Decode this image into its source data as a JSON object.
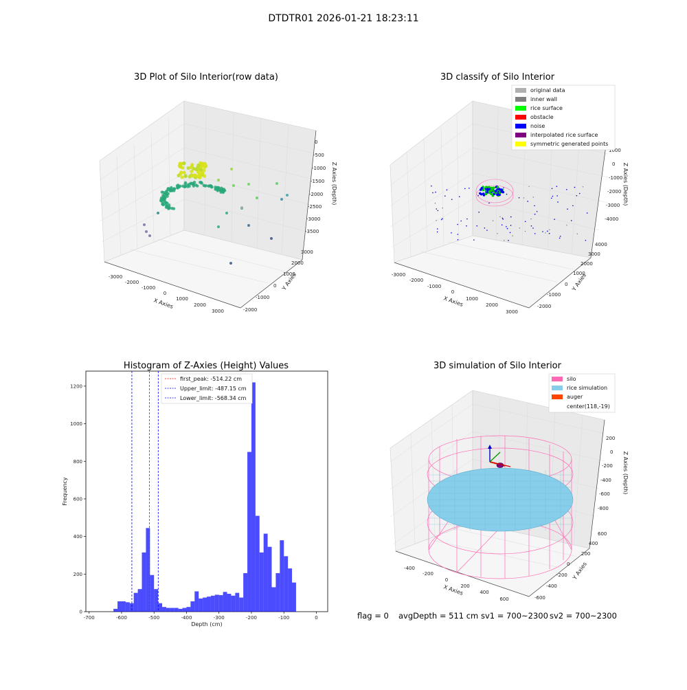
{
  "figure": {
    "suptitle": "DTDTR01 2026-01-21 18:23:11",
    "footer": {
      "flag": "flag = 0",
      "avg_depth": "avgDepth = 511 cm",
      "sv1": "sv1 = 700~2300",
      "sv2": "sv2 = 700~2300"
    }
  },
  "panel_raw": {
    "title": "3D Plot of Silo Interior(row data)",
    "xlabel": "X Axies",
    "ylabel": "Y Axies",
    "zlabel": "Z Axies (Depth)",
    "x_ticks": [
      "-3000",
      "-2000",
      "-1000",
      "0",
      "1000",
      "2000",
      "3000"
    ],
    "y_ticks": [
      "-2000",
      "-1000",
      "0",
      "1000",
      "2000",
      "3000"
    ],
    "z_ticks": [
      "0",
      "-500",
      "-1000",
      "-1500",
      "-2000",
      "-2500",
      "-3000",
      "-3500"
    ]
  },
  "panel_classify": {
    "title": "3D classify of Silo Interior",
    "xlabel": "X Axies",
    "ylabel": "Y Axies",
    "zlabel": "Z Axies (Depth)",
    "x_ticks": [
      "-3000",
      "-2000",
      "-1000",
      "0",
      "1000",
      "2000",
      "3000"
    ],
    "y_ticks": [
      "-2000",
      "-1000",
      "0",
      "1000",
      "2000",
      "3000",
      "4000"
    ],
    "z_ticks": [
      "1000",
      "0",
      "-1000",
      "-2000",
      "-3000",
      "-4000"
    ],
    "legend": [
      {
        "label": "original data",
        "color": "#b0b0b0"
      },
      {
        "label": "inner wall",
        "color": "#808080"
      },
      {
        "label": "rice surface",
        "color": "#00ff00"
      },
      {
        "label": "obstacle",
        "color": "#ff0000"
      },
      {
        "label": "noise",
        "color": "#0000ff"
      },
      {
        "label": "interpolated rice surface",
        "color": "#800080"
      },
      {
        "label": "symmetric generated points",
        "color": "#ffff00"
      }
    ]
  },
  "panel_sim": {
    "title": "3D simulation of Silo Interior",
    "xlabel": "X Axies",
    "ylabel": "Y Axies",
    "zlabel": "Z Axies (Depth)",
    "x_ticks": [
      "-400",
      "-200",
      "0",
      "200",
      "400",
      "600"
    ],
    "y_ticks": [
      "-600",
      "-400",
      "-200",
      "0",
      "200",
      "400",
      "600"
    ],
    "z_ticks": [
      "200",
      "0",
      "-200",
      "-400",
      "-600",
      "-800"
    ],
    "legend": [
      {
        "label": "silo",
        "color": "#ff69b4"
      },
      {
        "label": "rice simulation",
        "color": "#87ceeb"
      },
      {
        "label": "auger",
        "color": "#ff4500"
      },
      {
        "label": "center(118,-19)",
        "color": ""
      }
    ]
  },
  "chart_data": [
    {
      "type": "histogram",
      "title": "Histogram of Z-Axies (Height) Values",
      "xlabel": "Depth (cm)",
      "ylabel": "Frequency",
      "xlim": [
        -710,
        35
      ],
      "ylim": [
        0,
        1280
      ],
      "x_ticks": [
        -700,
        -600,
        -500,
        -400,
        -300,
        -200,
        -100,
        0
      ],
      "y_ticks": [
        0,
        200,
        400,
        600,
        800,
        1000,
        1200
      ],
      "bar_color": "#0000ff",
      "bin_width": 12.5,
      "bins_start": [
        -625,
        -612.5,
        -600,
        -587.5,
        -575,
        -562.5,
        -550,
        -537.5,
        -525,
        -512.5,
        -500,
        -487.5,
        -475,
        -462.5,
        -450,
        -437.5,
        -425,
        -412.5,
        -400,
        -387.5,
        -375,
        -362.5,
        -350,
        -337.5,
        -325,
        -312.5,
        -300,
        -287.5,
        -275,
        -262.5,
        -250,
        -237.5,
        -225,
        -212.5,
        -200,
        -187.5,
        -175,
        -162.5,
        -150,
        -137.5,
        -125,
        -112.5,
        -100,
        -87.5,
        -75,
        -62.5,
        -50,
        -37.5,
        -25,
        -12.5
      ],
      "counts": [
        15,
        55,
        55,
        50,
        45,
        100,
        120,
        315,
        445,
        195,
        120,
        45,
        25,
        20,
        20,
        20,
        15,
        20,
        25,
        55,
        108,
        70,
        75,
        80,
        85,
        90,
        88,
        105,
        95,
        85,
        100,
        75,
        205,
        850,
        1220,
        510,
        315,
        415,
        345,
        130,
        205,
        380,
        295,
        230,
        155,
        0,
        0,
        0,
        0,
        0
      ],
      "vlines": [
        {
          "label": "first_peak: -514.22 cm",
          "x": -514.22,
          "color": "#ff0000"
        },
        {
          "label": "Upper_limit: -487.15 cm",
          "x": -487.15,
          "color": "#0000ff"
        },
        {
          "label": "Lower_limit: -568.34 cm",
          "x": -568.34,
          "color": "#0000ff"
        }
      ],
      "legend_position": "top-center"
    }
  ]
}
